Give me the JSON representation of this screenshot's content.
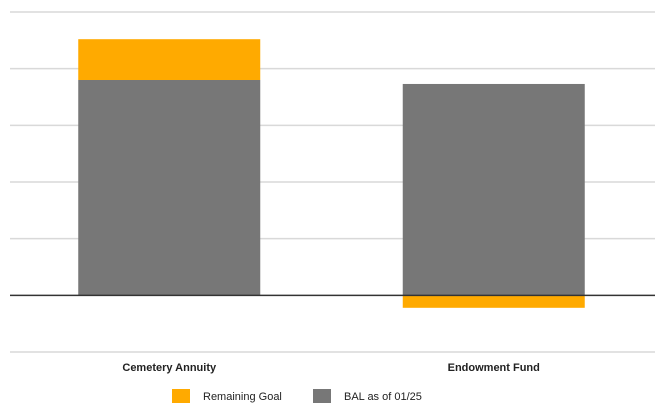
{
  "chart_data": {
    "type": "bar",
    "stacked": true,
    "categories": [
      "Cemetery Annuity",
      "Endowment Fund"
    ],
    "series": [
      {
        "name": "BAL as of 01/25",
        "values": [
          3.8,
          3.73
        ],
        "color": "#777777"
      },
      {
        "name": "Remaining Goal",
        "values": [
          0.72,
          -0.22
        ],
        "color": "#FFAA00"
      }
    ],
    "ylim": [
      -1,
      5
    ],
    "grid": true,
    "legend": {
      "position": "bottom",
      "entries": [
        {
          "label": "Remaining Goal",
          "color": "#FFAA00"
        },
        {
          "label": "BAL as of 01/25",
          "color": "#777777"
        }
      ]
    }
  }
}
